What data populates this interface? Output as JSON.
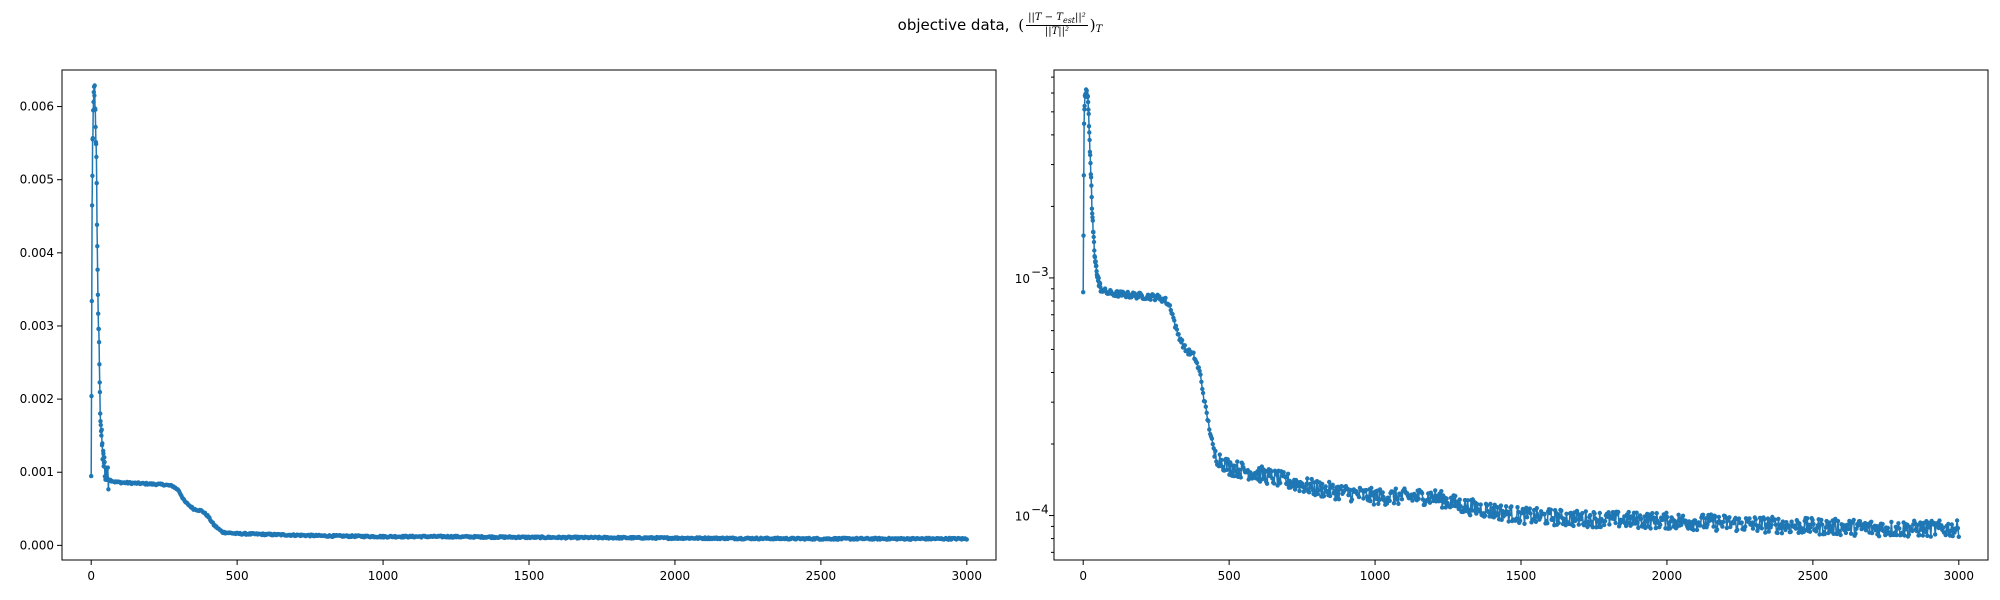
{
  "figure": {
    "title_prefix": "objective data,",
    "title_numerator": "||T − T",
    "title_numerator_sub": "est",
    "title_numerator_tail": "||²",
    "title_denominator": "||T||²",
    "title_subscript": "T"
  },
  "chart_data": [
    {
      "type": "line",
      "scale": "linear",
      "xlim": [
        -100,
        3100
      ],
      "ylim": [
        -0.0002,
        0.0065
      ],
      "xticks": [
        0,
        500,
        1000,
        1500,
        2000,
        2500,
        3000
      ],
      "xtick_labels": [
        "0",
        "500",
        "1000",
        "1500",
        "2000",
        "2500",
        "3000"
      ],
      "yticks": [
        0.0,
        0.001,
        0.002,
        0.003,
        0.004,
        0.005,
        0.006
      ],
      "ytick_labels": [
        "0.000",
        "0.001",
        "0.002",
        "0.003",
        "0.004",
        "0.005",
        "0.006"
      ],
      "series_color": "#1f77b4",
      "x": [
        0,
        3,
        5,
        8,
        10,
        12,
        15,
        18,
        20,
        22,
        25,
        28,
        30,
        35,
        40,
        45,
        50,
        55,
        60,
        80,
        100,
        150,
        200,
        250,
        280,
        300,
        320,
        350,
        380,
        400,
        420,
        450,
        500,
        600,
        800,
        1000,
        1200,
        1500,
        2000,
        2500,
        3000
      ],
      "y": [
        0.0009,
        0.0045,
        0.0055,
        0.006,
        0.0062,
        0.0062,
        0.0058,
        0.0052,
        0.0045,
        0.0037,
        0.003,
        0.0025,
        0.002,
        0.0015,
        0.0012,
        0.0011,
        0.001,
        0.00095,
        0.0009,
        0.00087,
        0.00086,
        0.00085,
        0.00084,
        0.00083,
        0.00081,
        0.00075,
        0.0006,
        0.0005,
        0.00047,
        0.0004,
        0.00028,
        0.00018,
        0.00016,
        0.00015,
        0.00013,
        0.00012,
        0.00012,
        0.00011,
        0.0001,
        9e-05,
        9e-05
      ]
    },
    {
      "type": "line",
      "scale": "log",
      "xlim": [
        -100,
        3100
      ],
      "ylim": [
        6.5e-05,
        0.0075
      ],
      "xticks": [
        0,
        500,
        1000,
        1500,
        2000,
        2500,
        3000
      ],
      "xtick_labels": [
        "0",
        "500",
        "1000",
        "1500",
        "2000",
        "2500",
        "3000"
      ],
      "yticks_major": [
        0.0001,
        0.001
      ],
      "ytick_labels": [
        "10",
        "10"
      ],
      "ytick_exponents": [
        "−4",
        "−3"
      ],
      "series_color": "#1f77b4",
      "x": [
        0,
        3,
        5,
        8,
        10,
        12,
        15,
        18,
        20,
        22,
        25,
        28,
        30,
        35,
        40,
        45,
        50,
        55,
        60,
        80,
        100,
        150,
        200,
        250,
        280,
        300,
        320,
        350,
        380,
        400,
        420,
        450,
        500,
        600,
        800,
        1000,
        1200,
        1300,
        1400,
        1500,
        1700,
        2000,
        2200,
        2500,
        2800,
        3000
      ],
      "y": [
        0.0009,
        0.0045,
        0.0055,
        0.006,
        0.0062,
        0.0062,
        0.0058,
        0.0052,
        0.0045,
        0.0037,
        0.003,
        0.0025,
        0.002,
        0.0015,
        0.0012,
        0.0011,
        0.001,
        0.00095,
        0.0009,
        0.00087,
        0.00086,
        0.00085,
        0.00084,
        0.00083,
        0.00081,
        0.00075,
        0.0006,
        0.0005,
        0.00047,
        0.0004,
        0.00028,
        0.00018,
        0.00016,
        0.00015,
        0.00013,
        0.00012,
        0.00012,
        0.00011,
        0.000105,
        0.0001,
        9.7e-05,
        9.5e-05,
        9.3e-05,
        9e-05,
        8.8e-05,
        8.8e-05
      ]
    }
  ]
}
